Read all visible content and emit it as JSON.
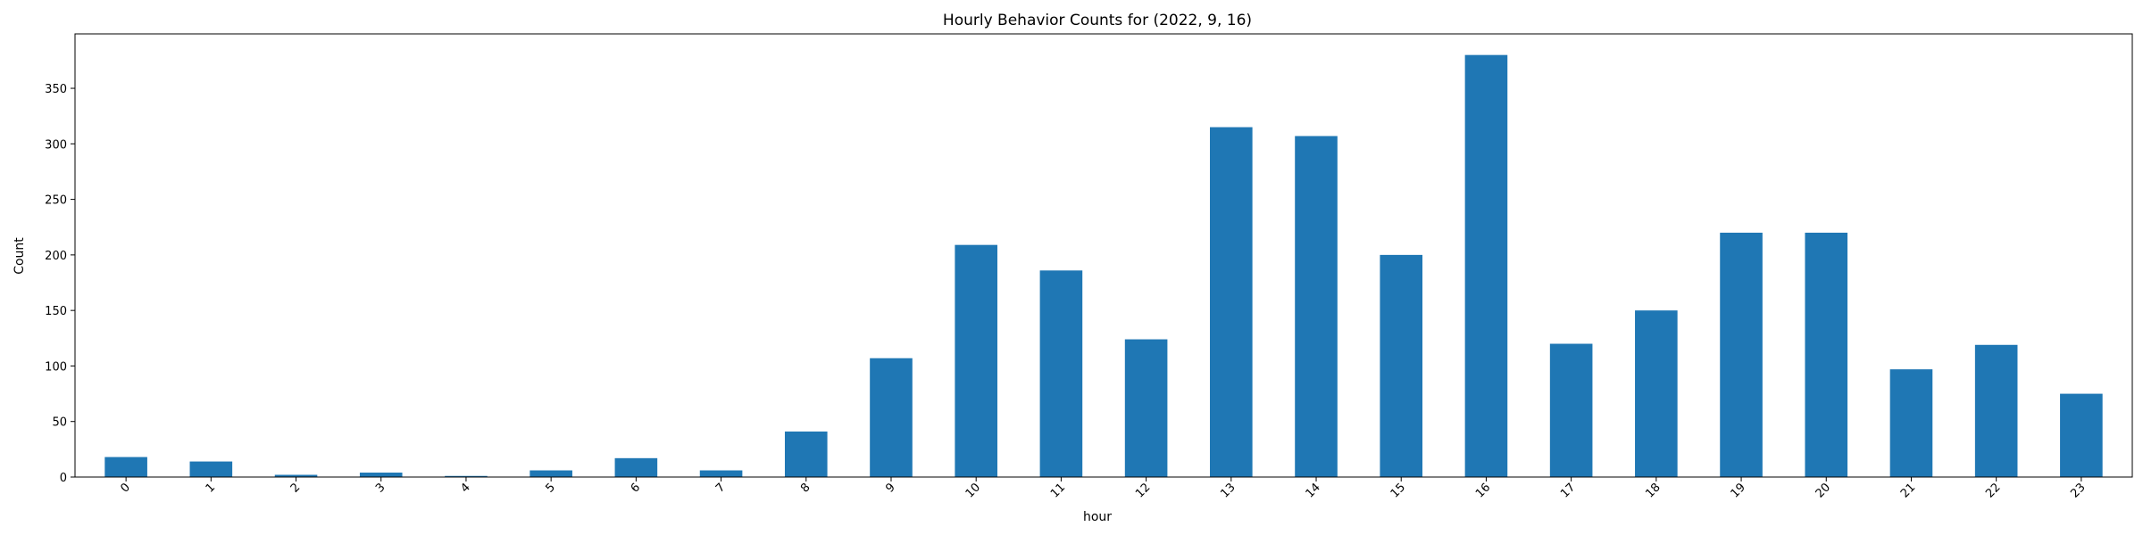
{
  "chart_data": {
    "type": "bar",
    "title": "Hourly Behavior Counts for (2022, 9, 16)",
    "xlabel": "hour",
    "ylabel": "Count",
    "categories": [
      "0",
      "1",
      "2",
      "3",
      "4",
      "5",
      "6",
      "7",
      "8",
      "9",
      "10",
      "11",
      "12",
      "13",
      "14",
      "15",
      "16",
      "17",
      "18",
      "19",
      "20",
      "21",
      "22",
      "23"
    ],
    "values": [
      18,
      14,
      2,
      4,
      1,
      6,
      17,
      6,
      41,
      107,
      209,
      186,
      124,
      315,
      307,
      200,
      380,
      120,
      150,
      220,
      220,
      97,
      119,
      75
    ],
    "yticks": [
      0,
      50,
      100,
      150,
      200,
      250,
      300,
      350
    ],
    "ylim": [
      0,
      399
    ],
    "bar_color": "#1f77b4",
    "grid": false,
    "x_tick_rotation_deg": 45
  }
}
